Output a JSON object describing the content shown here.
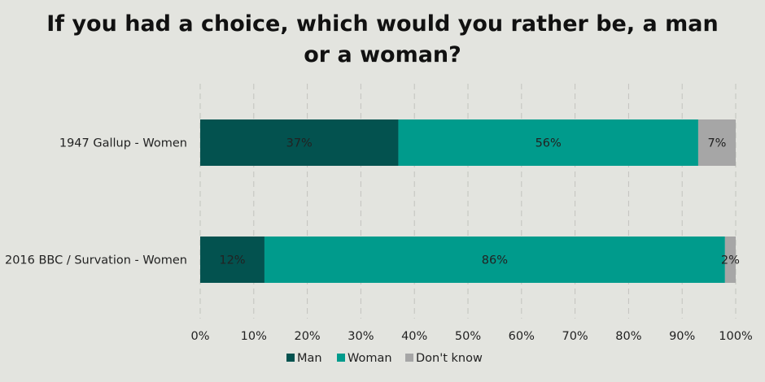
{
  "chart_data": {
    "type": "bar",
    "orientation": "horizontal",
    "stacked": true,
    "title": "If you had a choice, which would you rather be, a man or a woman?",
    "title_lines": [
      "If you had a choice, which would you rather be, a man",
      "or a woman?"
    ],
    "categories": [
      "1947 Gallup - Women",
      "2016 BBC / Survation - Women"
    ],
    "series": [
      {
        "name": "Man",
        "values": [
          37,
          12
        ],
        "labels": [
          "37%",
          "12%"
        ],
        "color": "#03524f"
      },
      {
        "name": "Woman",
        "values": [
          56,
          86
        ],
        "labels": [
          "56%",
          "86%"
        ],
        "color": "#009b8c"
      },
      {
        "name": "Don't know",
        "values": [
          7,
          2
        ],
        "labels": [
          "7%",
          "2%"
        ],
        "color": "#a6a6a6"
      }
    ],
    "xlim": [
      0,
      100
    ],
    "x_ticks": [
      "0%",
      "10%",
      "20%",
      "30%",
      "40%",
      "50%",
      "60%",
      "70%",
      "80%",
      "90%",
      "100%"
    ],
    "grid": "vertical-dashed",
    "legend": "bottom",
    "background": "#e3e4df"
  }
}
